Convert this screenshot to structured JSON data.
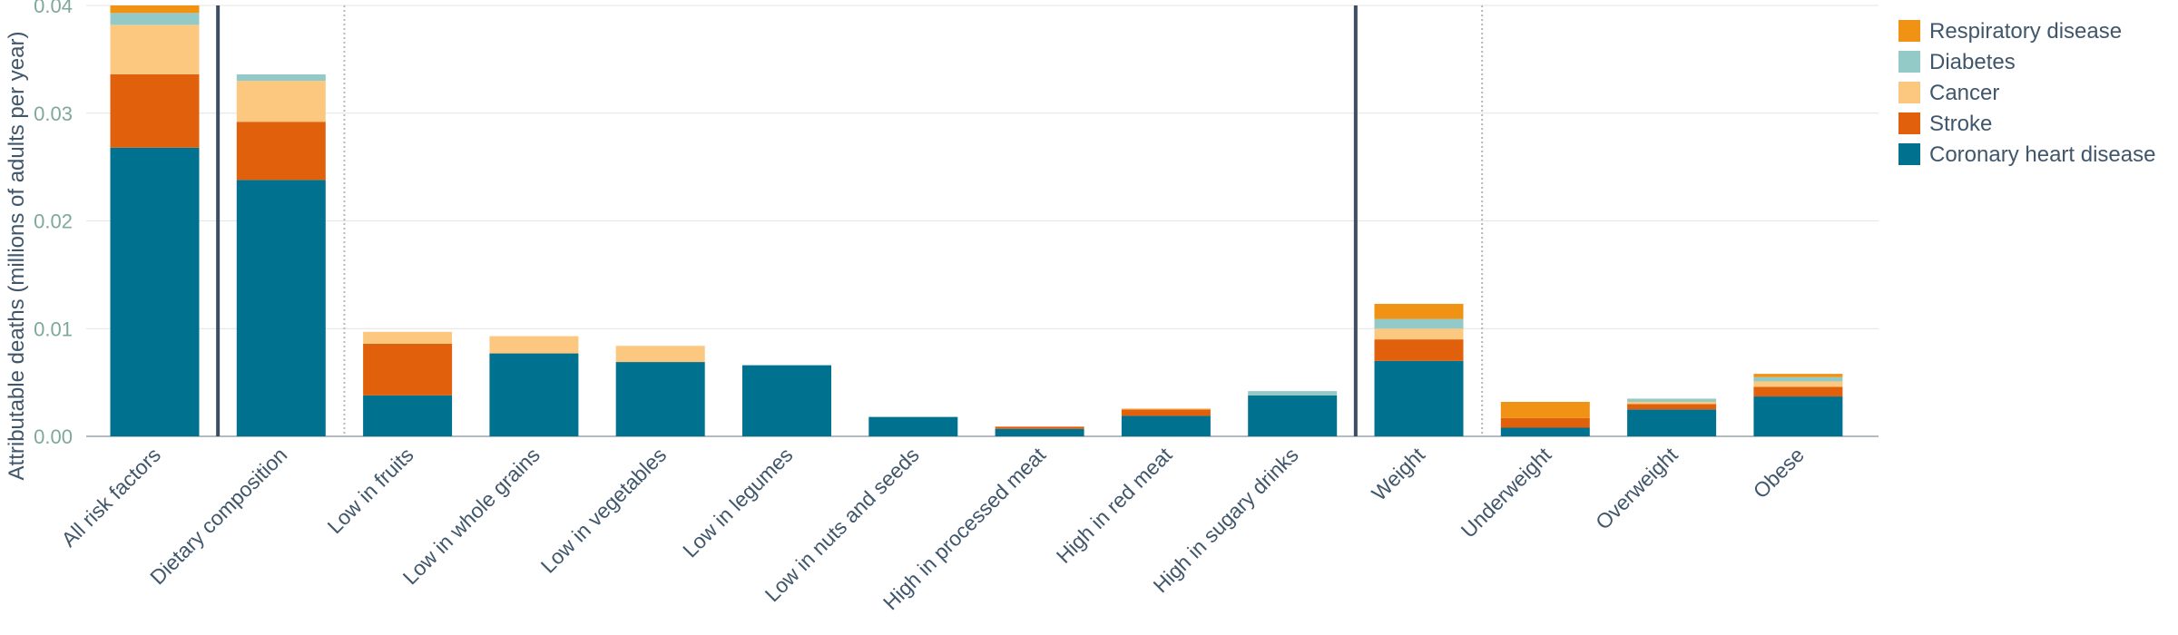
{
  "chart_data": {
    "type": "bar",
    "stacked": true,
    "ylabel": "Attributable deaths (millions of adults per year)",
    "xlabel": "",
    "ylim": [
      0,
      0.04
    ],
    "yticks": [
      "0.00",
      "0.01",
      "0.02",
      "0.03",
      "0.04"
    ],
    "grid": true,
    "legend_position": "top-right",
    "categories": [
      "All risk factors",
      "Dietary composition",
      "Low in fruits",
      "Low in whole grains",
      "Low in vegetables",
      "Low in legumes",
      "Low in nuts and seeds",
      "High in processed meat",
      "High in red meat",
      "High in sugary drinks",
      "Weight",
      "Underweight",
      "Overweight",
      "Obese"
    ],
    "series": [
      {
        "name": "Coronary heart disease",
        "color": "#00718f",
        "values": [
          0.0268,
          0.0238,
          0.0038,
          0.0077,
          0.0069,
          0.0066,
          0.0018,
          0.0007,
          0.0019,
          0.0038,
          0.007,
          0.0008,
          0.0025,
          0.0037
        ]
      },
      {
        "name": "Stroke",
        "color": "#e0600c",
        "values": [
          0.0068,
          0.0054,
          0.0048,
          0.0,
          0.0,
          0.0,
          0.0,
          0.0002,
          0.0006,
          0.0,
          0.002,
          0.0009,
          0.0005,
          0.0009
        ]
      },
      {
        "name": "Cancer",
        "color": "#fcc880",
        "values": [
          0.0046,
          0.0038,
          0.0011,
          0.0016,
          0.0015,
          0.0,
          0.0,
          0.0,
          0.0001,
          0.0,
          0.001,
          0.0,
          0.0002,
          0.0005
        ]
      },
      {
        "name": "Diabetes",
        "color": "#93c9c7",
        "values": [
          0.0011,
          0.0006,
          0.0,
          0.0,
          0.0,
          0.0,
          0.0,
          0.0,
          0.0,
          0.0004,
          0.0009,
          0.0,
          0.0003,
          0.0004
        ]
      },
      {
        "name": "Respiratory disease",
        "color": "#f09213",
        "values": [
          0.0015,
          0.0,
          0.0,
          0.0,
          0.0,
          0.0,
          0.0,
          0.0,
          0.0,
          0.0,
          0.0014,
          0.0015,
          0.0,
          0.0003
        ]
      }
    ],
    "legend_order": [
      "Respiratory disease",
      "Diabetes",
      "Cancer",
      "Stroke",
      "Coronary heart disease"
    ]
  }
}
